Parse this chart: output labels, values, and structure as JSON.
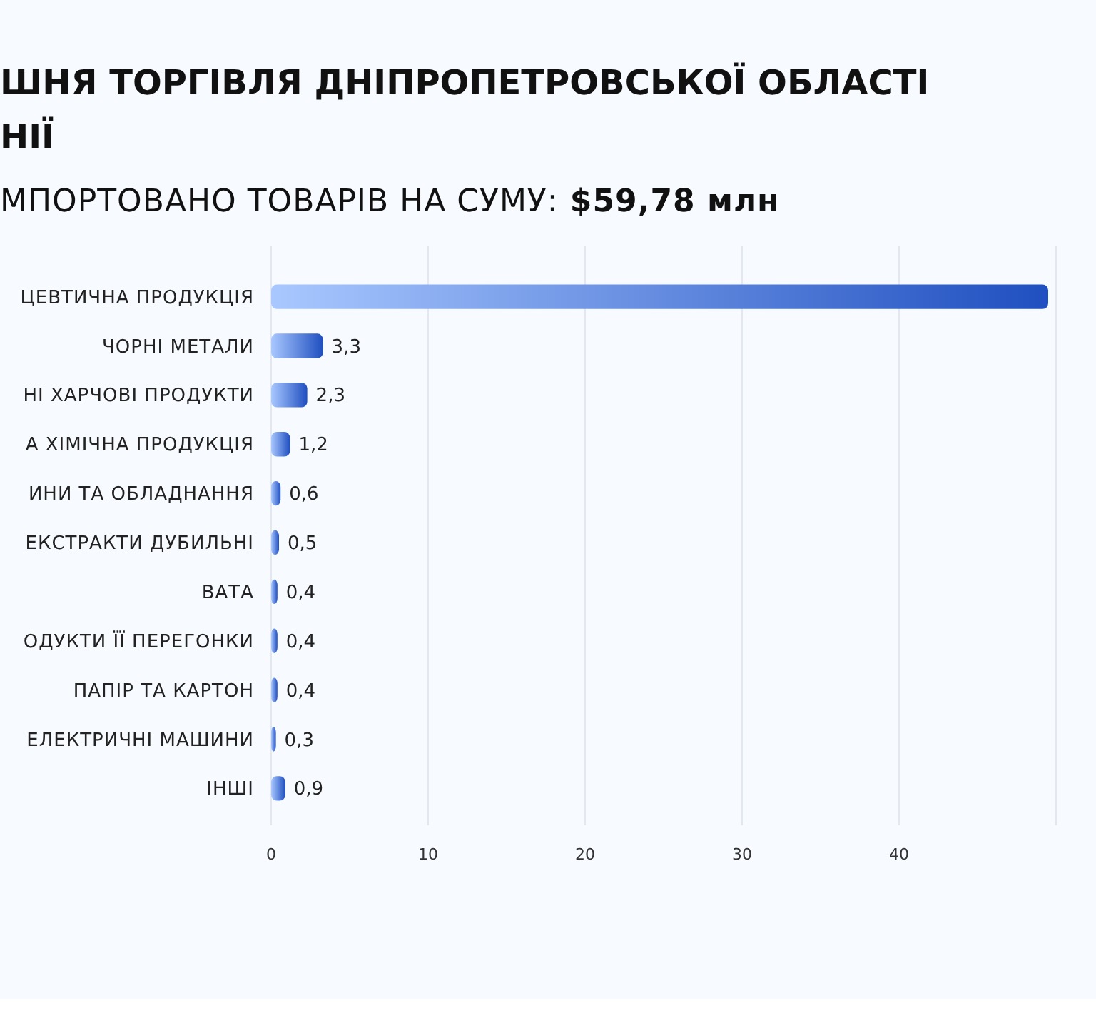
{
  "chart_data": {
    "type": "bar",
    "orientation": "horizontal",
    "title": "ШНЯ ТОРГІВЛЯ ДНІПРОПЕТРОВСЬКОЇ ОБЛАСТІ НІЇ",
    "subtitle": "МПОРТОВАНО ТОВАРІВ НА СУМУ: $59,78 млн",
    "categories": [
      "ЦЕВТИЧНА ПРОДУКЦІЯ",
      "ЧОРНІ МЕТАЛИ",
      "НІ ХАРЧОВІ ПРОДУКТИ",
      "А ХІМІЧНА ПРОДУКЦІЯ",
      "ИНИ ТА ОБЛАДНАННЯ",
      "ЕКСТРАКТИ ДУБИЛЬНІ",
      "ВАТА",
      "ОДУКТИ ЇЇ ПЕРЕГОНКИ",
      "ПАПІР ТА КАРТОН",
      "ЕЛЕКТРИЧНІ МАШИНИ",
      "ІНШІ"
    ],
    "values": [
      49.5,
      3.3,
      2.3,
      1.2,
      0.6,
      0.5,
      0.4,
      0.4,
      0.4,
      0.3,
      0.9
    ],
    "value_labels": [
      null,
      "3,3",
      "2,3",
      "1,2",
      "0,6",
      "0,5",
      "0,4",
      "0,4",
      "0,4",
      "0,3",
      "0,9"
    ],
    "color": "#1f4fc0",
    "xlim": [
      0,
      50
    ],
    "xticks": [
      0,
      10,
      20,
      30,
      40,
      {
        "value": 50,
        "label": null
      }
    ],
    "grid": "x"
  }
}
